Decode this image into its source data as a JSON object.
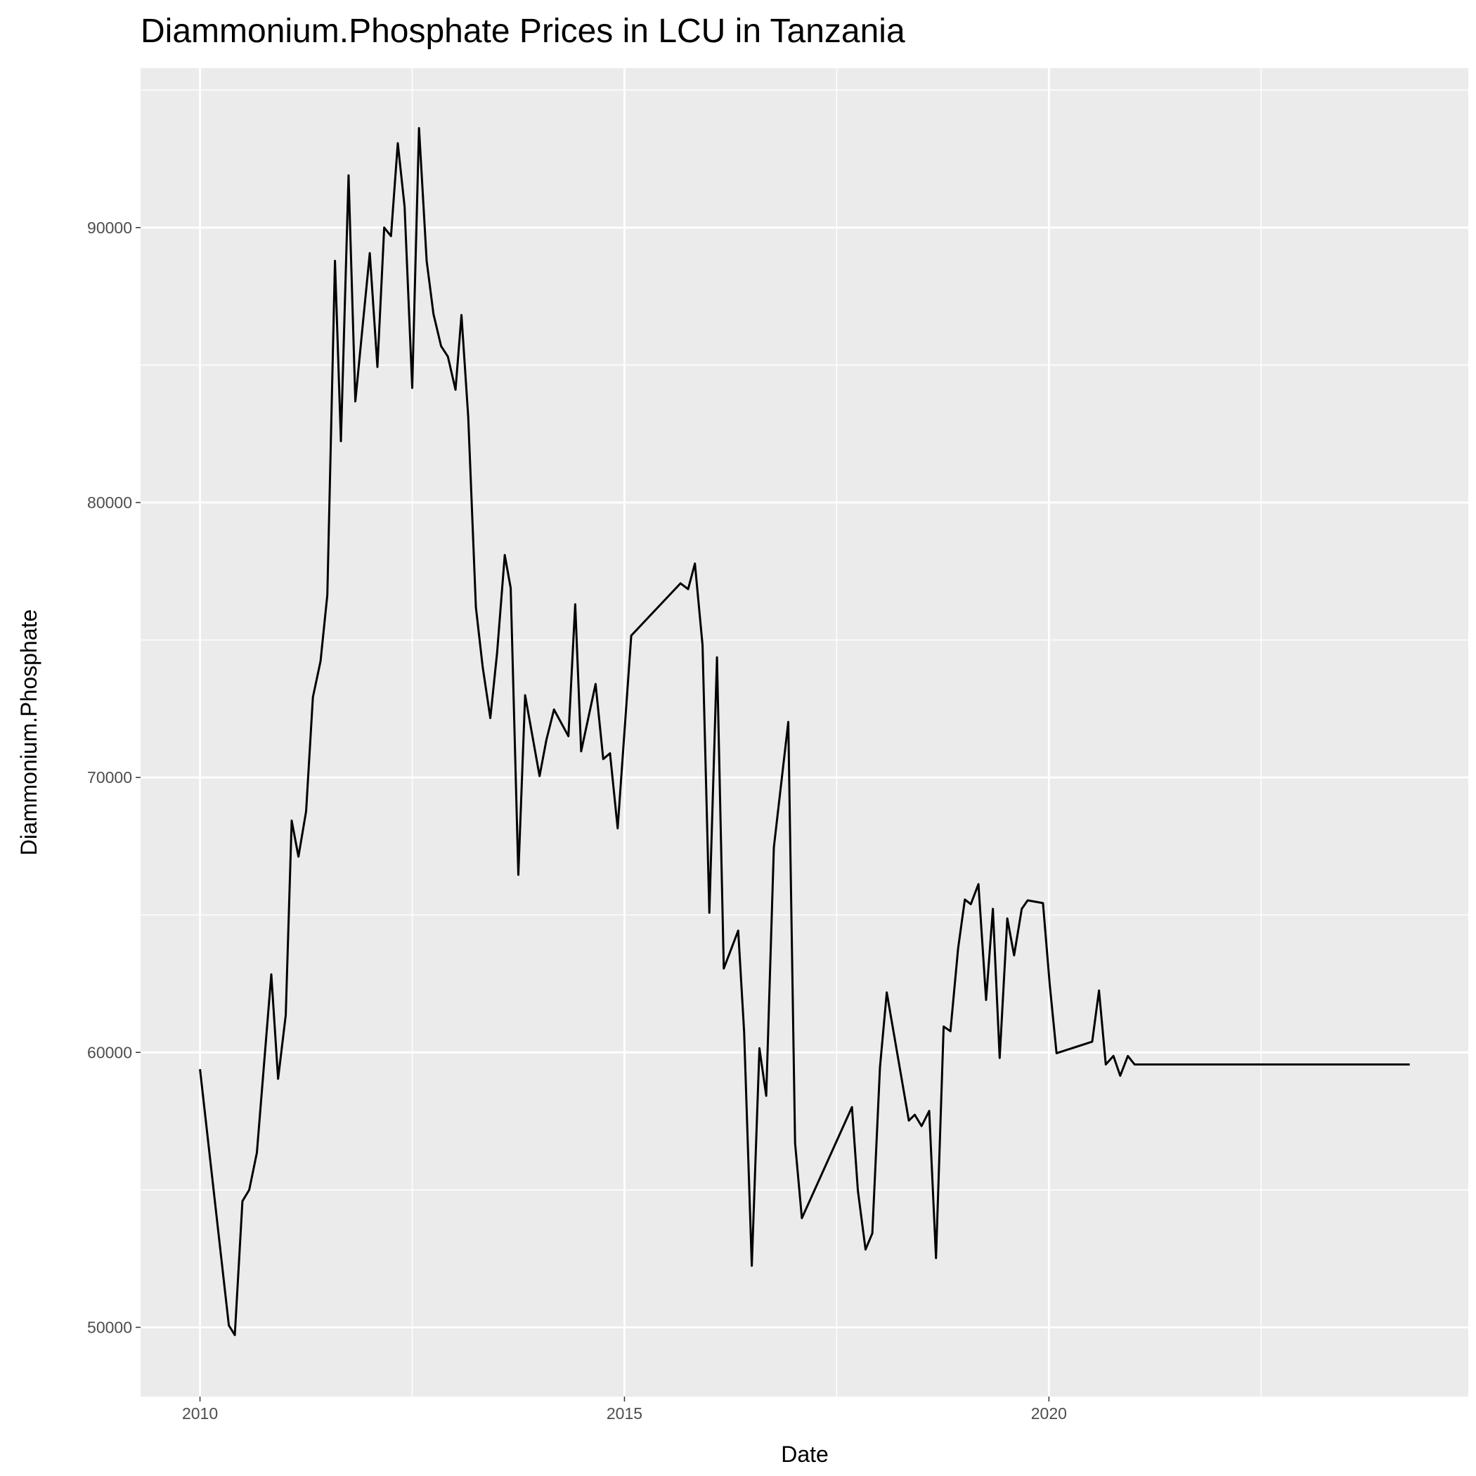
{
  "chart_data": {
    "type": "line",
    "title": "Diammonium.Phosphate Prices in LCU in Tanzania",
    "x_label": "Date",
    "y_label": "Diammonium.Phosphate",
    "xlim": [
      2009.3,
      2024.94
    ],
    "xticks": [
      2010,
      2015,
      2020
    ],
    "ylim": [
      47481,
      95798
    ],
    "yticks": [
      50000,
      60000,
      70000,
      80000,
      90000
    ],
    "grid": true,
    "series": [
      {
        "name": "Diammonium.Phosphate",
        "color": "#000000",
        "x": [
          2010.0,
          2010.34,
          2010.41,
          2010.5,
          2010.58,
          2010.67,
          2010.84,
          2010.92,
          2011.01,
          2011.08,
          2011.16,
          2011.25,
          2011.33,
          2011.42,
          2011.5,
          2011.59,
          2011.66,
          2011.75,
          2011.83,
          2011.92,
          2012.0,
          2012.09,
          2012.17,
          2012.25,
          2012.33,
          2012.41,
          2012.5,
          2012.58,
          2012.67,
          2012.75,
          2012.84,
          2012.92,
          2013.01,
          2013.08,
          2013.16,
          2013.25,
          2013.33,
          2013.42,
          2013.5,
          2013.59,
          2013.66,
          2013.75,
          2013.83,
          2014.0,
          2014.08,
          2014.17,
          2014.34,
          2014.42,
          2014.49,
          2014.66,
          2014.75,
          2014.83,
          2014.92,
          2015.08,
          2015.66,
          2015.75,
          2015.83,
          2015.92,
          2016.0,
          2016.09,
          2016.17,
          2016.34,
          2016.41,
          2016.5,
          2016.59,
          2016.67,
          2016.76,
          2016.93,
          2017.01,
          2017.09,
          2017.68,
          2017.75,
          2017.84,
          2017.92,
          2018.01,
          2018.09,
          2018.35,
          2018.42,
          2018.5,
          2018.59,
          2018.67,
          2018.76,
          2018.84,
          2018.93,
          2019.01,
          2019.08,
          2019.17,
          2019.26,
          2019.34,
          2019.42,
          2019.51,
          2019.59,
          2019.68,
          2019.75,
          2019.93,
          2020.01,
          2020.09,
          2020.51,
          2020.59,
          2020.67,
          2020.76,
          2020.84,
          2020.93,
          2021.01,
          2024.25
        ],
        "values": [
          59390,
          50070,
          49720,
          54590,
          55000,
          56350,
          62840,
          59040,
          61350,
          68430,
          67120,
          68770,
          72920,
          74230,
          76640,
          88790,
          82230,
          91900,
          83680,
          86550,
          89070,
          84930,
          90000,
          89690,
          93070,
          90760,
          84170,
          93620,
          88790,
          86860,
          85690,
          85310,
          84100,
          86820,
          83100,
          76190,
          74020,
          72160,
          74540,
          78090,
          76890,
          66460,
          72990,
          70050,
          71360,
          72470,
          71500,
          76300,
          70950,
          73400,
          70670,
          70880,
          68150,
          75160,
          77060,
          76850,
          77780,
          74810,
          65080,
          74370,
          63050,
          64430,
          60730,
          52240,
          60150,
          58420,
          67460,
          72020,
          56700,
          53970,
          58010,
          54970,
          52830,
          53420,
          59460,
          62180,
          57520,
          57730,
          57320,
          57870,
          52520,
          60940,
          60770,
          63770,
          65560,
          65390,
          66120,
          61910,
          65220,
          59800,
          64870,
          63530,
          65220,
          65530,
          65430,
          62460,
          59970,
          60390,
          62250,
          59560,
          59870,
          59150,
          59870,
          59560,
          59560
        ]
      }
    ]
  }
}
